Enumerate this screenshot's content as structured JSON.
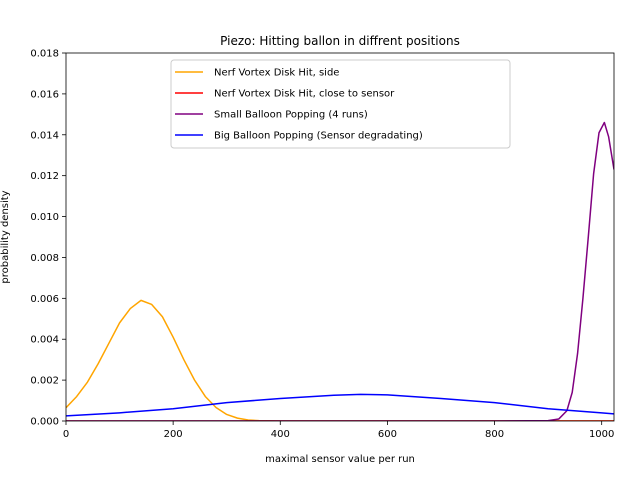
{
  "chart_data": {
    "type": "line",
    "title": "Piezo: Hitting ballon in diffrent positions",
    "xlabel": "maximal sensor value per run",
    "ylabel": "probability density",
    "xlim": [
      0,
      1023
    ],
    "ylim": [
      0,
      0.018
    ],
    "x_ticks": [
      "0",
      "200",
      "400",
      "600",
      "800",
      "1000"
    ],
    "y_ticks": [
      "0.000",
      "0.002",
      "0.004",
      "0.006",
      "0.008",
      "0.010",
      "0.012",
      "0.014",
      "0.016",
      "0.018"
    ],
    "legend_position": "upper center",
    "grid": false,
    "series": [
      {
        "name": "Nerf Vortex Disk Hit, side",
        "color": "#ffa500",
        "x": [
          0,
          20,
          40,
          60,
          80,
          100,
          120,
          140,
          160,
          180,
          200,
          220,
          240,
          260,
          280,
          300,
          320,
          340,
          360,
          380,
          400,
          450,
          500,
          600,
          700,
          800,
          900,
          1000,
          1023
        ],
        "y": [
          0.00065,
          0.0012,
          0.0019,
          0.0028,
          0.0038,
          0.0048,
          0.0055,
          0.0059,
          0.0057,
          0.0051,
          0.0041,
          0.003,
          0.002,
          0.0012,
          0.00066,
          0.00032,
          0.00014,
          5e-05,
          2e-05,
          1e-05,
          0.0,
          0.0,
          0.0,
          0.0,
          0.0,
          0.0,
          0.0,
          0.0,
          0.0
        ]
      },
      {
        "name": "Nerf Vortex Disk Hit, close to sensor",
        "color": "#ff0000",
        "x": [
          0,
          200,
          400,
          600,
          800,
          1000,
          1023
        ],
        "y": [
          0.0,
          0.0,
          0.0,
          0.0,
          0.0,
          0.0,
          0.0
        ]
      },
      {
        "name": "Small Balloon Popping (4 runs)",
        "color": "#800080",
        "x": [
          0,
          800,
          900,
          920,
          935,
          945,
          955,
          965,
          975,
          985,
          995,
          1005,
          1013,
          1023
        ],
        "y": [
          0.0,
          0.0,
          2e-05,
          0.0001,
          0.0005,
          0.0014,
          0.0033,
          0.006,
          0.009,
          0.0121,
          0.0141,
          0.0146,
          0.0139,
          0.0123
        ]
      },
      {
        "name": "Big Balloon Popping (Sensor degradating)",
        "color": "#0000ff",
        "x": [
          0,
          100,
          200,
          300,
          400,
          500,
          550,
          600,
          700,
          800,
          900,
          1000,
          1023
        ],
        "y": [
          0.00025,
          0.0004,
          0.0006,
          0.0009,
          0.0011,
          0.00126,
          0.0013,
          0.00128,
          0.0011,
          0.0009,
          0.0006,
          0.0004,
          0.00035
        ]
      }
    ]
  }
}
